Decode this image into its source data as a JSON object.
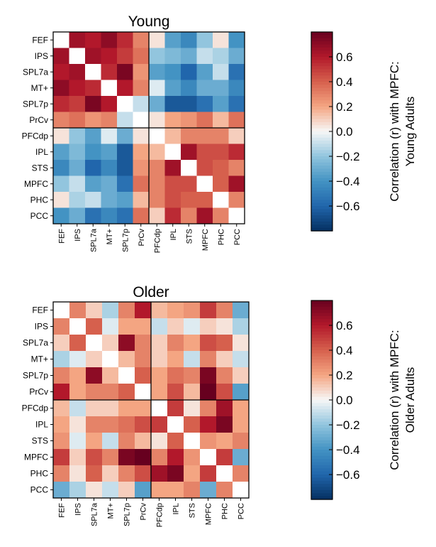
{
  "chart_data": [
    {
      "type": "heatmap",
      "title": "Young",
      "rows": [
        "FEF",
        "IPS",
        "SPL7a",
        "MT+",
        "SPL7p",
        "PrCv",
        "PFCdp",
        "IPL",
        "STS",
        "MPFC",
        "PHC",
        "PCC"
      ],
      "cols": [
        "FEF",
        "IPS",
        "SPL7a",
        "MT+",
        "SPL7p",
        "PrCv",
        "PFCdp",
        "IPL",
        "STS",
        "MPFC",
        "PHC",
        "PCC"
      ],
      "values": [
        [
          0,
          0.65,
          0.6,
          0.7,
          0.55,
          0.3,
          0.05,
          -0.35,
          -0.45,
          -0.2,
          0.05,
          -0.4
        ],
        [
          0.65,
          0,
          0.65,
          0.6,
          0.5,
          0.35,
          -0.2,
          -0.25,
          -0.3,
          -0.1,
          -0.15,
          -0.3
        ],
        [
          0.6,
          0.65,
          0,
          0.55,
          0.75,
          0.25,
          -0.35,
          -0.4,
          -0.6,
          -0.35,
          -0.1,
          -0.55
        ],
        [
          0.7,
          0.6,
          0.55,
          0,
          0.6,
          0.3,
          -0.05,
          -0.35,
          -0.45,
          -0.3,
          -0.3,
          -0.45
        ],
        [
          0.55,
          0.5,
          0.75,
          0.6,
          0,
          -0.1,
          -0.3,
          -0.65,
          -0.65,
          -0.55,
          -0.35,
          -0.55
        ],
        [
          0.3,
          0.35,
          0.25,
          0.3,
          -0.1,
          0,
          0.05,
          0.2,
          0.25,
          0.35,
          0.15,
          0.35
        ],
        [
          0.05,
          -0.2,
          -0.35,
          -0.05,
          -0.3,
          0.05,
          0,
          0.15,
          0.3,
          0.3,
          0.3,
          0.1
        ],
        [
          -0.35,
          -0.25,
          -0.4,
          -0.35,
          -0.65,
          0.2,
          0.15,
          0,
          0.65,
          0.45,
          0.45,
          0.55
        ],
        [
          -0.45,
          -0.3,
          -0.6,
          -0.45,
          -0.65,
          0.25,
          0.3,
          0.65,
          0,
          0.45,
          0.4,
          0.3
        ],
        [
          -0.2,
          -0.1,
          -0.35,
          -0.3,
          -0.55,
          0.35,
          0.3,
          0.45,
          0.45,
          0,
          0.4,
          0.65
        ],
        [
          0.05,
          -0.15,
          -0.1,
          -0.3,
          -0.35,
          0.15,
          0.3,
          0.45,
          0.4,
          0.4,
          0,
          0.3
        ],
        [
          -0.4,
          -0.3,
          -0.55,
          -0.45,
          -0.55,
          0.35,
          0.1,
          0.55,
          0.3,
          0.65,
          0.3,
          0
        ]
      ],
      "vmin": -0.8,
      "vmax": 0.8,
      "colormap": "RdBu_r",
      "colorbar_ticks": [
        -0.6,
        -0.4,
        -0.2,
        0.0,
        0.2,
        0.4,
        0.6
      ],
      "colorbar_tick_labels": [
        "−0.6",
        "−0.4",
        "−0.2",
        "0.0",
        "0.2",
        "0.4",
        "0.6"
      ],
      "colorbar_label": [
        "Correlation (r) with MPFC:",
        "Young Adults"
      ],
      "group_split_after": 6
    },
    {
      "type": "heatmap",
      "title": "Older",
      "rows": [
        "FEF",
        "IPS",
        "SPL7a",
        "MT+",
        "SPL7p",
        "PrCv",
        "PFCdp",
        "IPL",
        "STS",
        "MPFC",
        "PHC",
        "PCC"
      ],
      "cols": [
        "FEF",
        "IPS",
        "SPL7a",
        "MT+",
        "SPL7p",
        "PrCv",
        "PFCdp",
        "IPL",
        "STS",
        "MPFC",
        "PHC",
        "PCC"
      ],
      "values": [
        [
          0,
          0.3,
          0.1,
          -0.15,
          0.3,
          0.6,
          0.15,
          0.2,
          0.25,
          0.5,
          0.3,
          -0.3
        ],
        [
          0.3,
          0,
          0.4,
          -0.05,
          0.2,
          0.2,
          -0.1,
          0.1,
          -0.05,
          0.1,
          0.05,
          -0.15
        ],
        [
          0.1,
          0.4,
          0,
          0.1,
          0.7,
          0.3,
          0.1,
          0.3,
          0.2,
          0.45,
          0.4,
          0.05
        ],
        [
          -0.15,
          -0.05,
          0.1,
          0,
          0.15,
          0.3,
          0.1,
          0.2,
          -0.1,
          0.3,
          0.1,
          -0.1
        ],
        [
          0.3,
          0.2,
          0.7,
          0.15,
          0,
          0.4,
          0.2,
          0.35,
          0.3,
          0.75,
          0.3,
          0.1
        ],
        [
          0.6,
          0.2,
          0.3,
          0.3,
          0.4,
          0,
          0.2,
          0.45,
          0.15,
          0.8,
          0.45,
          -0.35
        ],
        [
          0.15,
          -0.1,
          0.1,
          0.1,
          0.2,
          0.2,
          0,
          0.5,
          0.05,
          0.3,
          0.65,
          0.2
        ],
        [
          0.2,
          0.05,
          0.3,
          0.3,
          0.35,
          0.45,
          0.5,
          0,
          0.4,
          0.6,
          0.75,
          0.2
        ],
        [
          0.25,
          -0.05,
          0.2,
          -0.1,
          0.3,
          0.15,
          0.05,
          0.4,
          0,
          0.25,
          0.2,
          0.3
        ],
        [
          0.5,
          0.1,
          0.45,
          0.3,
          0.75,
          0.8,
          0.3,
          0.6,
          0.25,
          0,
          0.5,
          -0.3
        ],
        [
          0.3,
          0.05,
          0.4,
          0.1,
          0.3,
          0.45,
          0.65,
          0.75,
          0.2,
          0.5,
          0,
          0.3
        ],
        [
          -0.3,
          -0.15,
          0.05,
          -0.1,
          0.1,
          -0.35,
          0.2,
          0.2,
          0.3,
          -0.3,
          0.3,
          0
        ]
      ],
      "vmin": -0.8,
      "vmax": 0.8,
      "colormap": "RdBu_r",
      "colorbar_ticks": [
        -0.6,
        -0.4,
        -0.2,
        0.0,
        0.2,
        0.4,
        0.6
      ],
      "colorbar_tick_labels": [
        "−0.6",
        "−0.4",
        "−0.2",
        "0.0",
        "0.2",
        "0.4",
        "0.6"
      ],
      "colorbar_label": [
        "Correlation (r) with MPFC:",
        "Older Adults"
      ],
      "group_split_after": 6
    }
  ],
  "colors": {
    "diagonal": "#ffffff",
    "frame": "#000000"
  }
}
